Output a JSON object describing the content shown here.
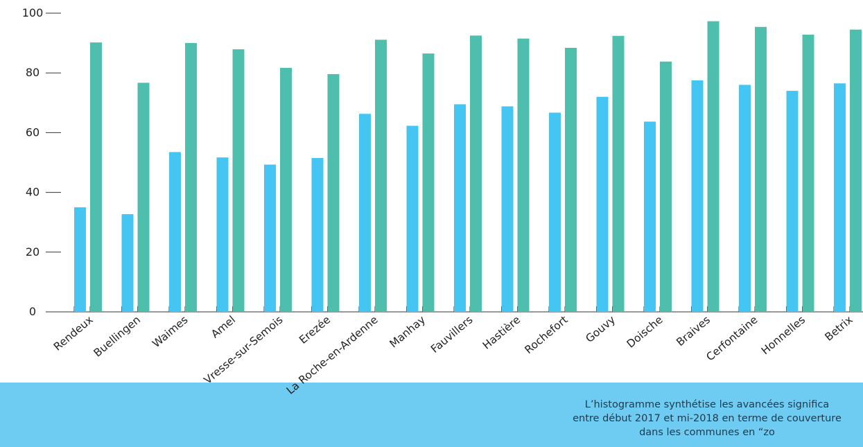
{
  "colors": {
    "series_before": "#45c5f2",
    "series_after": "#4ebfad",
    "caption_band": "#6ecbf2",
    "axis": "#333333"
  },
  "caption": {
    "lines": [
      "L’histogramme synthétise les avancées significa",
      "entre début 2017 et mi-2018 en terme de couverture",
      "dans les communes en “zo"
    ]
  },
  "chart_data": {
    "type": "bar",
    "title": "",
    "xlabel": "",
    "ylabel": "",
    "ylim": [
      0,
      100
    ],
    "yticks": [
      0,
      20,
      40,
      60,
      80,
      100
    ],
    "grid": false,
    "categories": [
      "Rendeux",
      "Buellingen",
      "Waimes",
      "Amel",
      "Vresse-sur-Semois",
      "Erezée",
      "La Roche-en-Ardenne",
      "Manhay",
      "Fauvillers",
      "Hastière",
      "Rochefort",
      "Gouvy",
      "Doische",
      "Braives",
      "Cerfontaine",
      "Honnelles",
      "Betrix"
    ],
    "series": [
      {
        "color": "#45c5f2",
        "values": [
          35,
          32.7,
          53.5,
          51.7,
          49.3,
          51.5,
          66.3,
          62.3,
          69.5,
          68.8,
          66.7,
          72,
          63.7,
          77.5,
          76,
          74,
          76.5
        ]
      },
      {
        "color": "#4ebfad",
        "values": [
          90.2,
          76.7,
          90,
          87.9,
          81.7,
          79.6,
          91.1,
          86.5,
          92.5,
          91.5,
          88.4,
          92.4,
          83.8,
          97.3,
          95.4,
          92.8,
          94.5
        ]
      }
    ]
  }
}
